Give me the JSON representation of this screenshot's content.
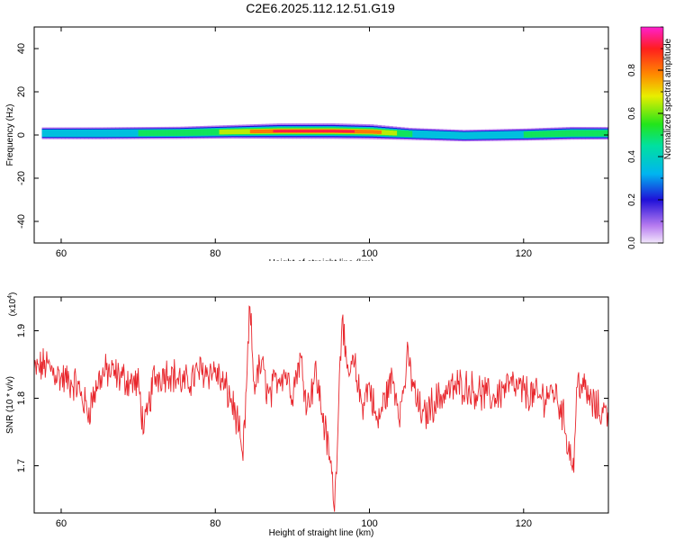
{
  "title": "C2E6.2025.112.12.51.G19",
  "chart_data": [
    {
      "type": "heatmap",
      "xlabel": "Height of straight line (km)",
      "ylabel": "Frequency (Hz)",
      "xlim": [
        56.5,
        131
      ],
      "ylim": [
        -50,
        50
      ],
      "xticks": [
        60,
        80,
        100,
        120
      ],
      "yticks": [
        -40,
        -20,
        0,
        20,
        40
      ],
      "xtick_labels": [
        "60",
        "80",
        "100",
        "120"
      ],
      "ytick_labels": [
        "-40",
        "-20",
        "0",
        "20",
        "40"
      ],
      "data_extent_x": [
        57.5,
        131
      ],
      "colorbar": {
        "label": "Normalized spectral amplitude",
        "range": [
          0,
          1
        ],
        "ticks": [
          0.0,
          0.2,
          0.4,
          0.6,
          0.8
        ],
        "tick_labels": [
          "0.0",
          "0.2",
          "0.4",
          "0.6",
          "0.8"
        ],
        "colormap": "rainbow (purple-blue-cyan-green-yellow-orange-red-magenta)"
      },
      "ridge": {
        "x": [
          57.5,
          65,
          75,
          82,
          88,
          95,
          100,
          105,
          112,
          120,
          126,
          131
        ],
        "frequency": [
          0.8,
          0.8,
          1.0,
          1.5,
          1.8,
          1.8,
          1.5,
          0.5,
          -0.3,
          0.2,
          0.8,
          0.8
        ],
        "amplitude": [
          0.45,
          0.48,
          0.52,
          0.7,
          0.95,
          0.97,
          0.88,
          0.5,
          0.42,
          0.5,
          0.6,
          0.55
        ]
      }
    },
    {
      "type": "line",
      "xlabel": "Height of straight line (km)",
      "ylabel": "SNR (10 * v/v)",
      "yscale_label": "(x10",
      "yscale_exponent": "4",
      "xlim": [
        56.5,
        131
      ],
      "ylim": [
        1.63,
        1.95
      ],
      "xticks": [
        60,
        80,
        100,
        120
      ],
      "yticks": [
        1.7,
        1.8,
        1.9
      ],
      "xtick_labels": [
        "60",
        "80",
        "100",
        "120"
      ],
      "ytick_labels": [
        "1.7",
        "1.8",
        "1.9"
      ],
      "series": [
        {
          "color": "#e8262c",
          "x": [
            56.5,
            58,
            60,
            62,
            63.5,
            65,
            66,
            68,
            70,
            70.8,
            72,
            74,
            76,
            78,
            80,
            81,
            82,
            83,
            83.5,
            84,
            84.5,
            85,
            86,
            87,
            88,
            89,
            90,
            91,
            92,
            93,
            94,
            95,
            95.5,
            96,
            96.5,
            97,
            98,
            99,
            100,
            101,
            102,
            103,
            104,
            105,
            106,
            107,
            108,
            109,
            110,
            112,
            114,
            116,
            118,
            120,
            122,
            124,
            125,
            126,
            126.5,
            127,
            128,
            129,
            130,
            131
          ],
          "y": [
            1.84,
            1.85,
            1.83,
            1.82,
            1.78,
            1.83,
            1.84,
            1.83,
            1.82,
            1.75,
            1.83,
            1.84,
            1.82,
            1.84,
            1.84,
            1.82,
            1.8,
            1.76,
            1.7,
            1.8,
            1.94,
            1.82,
            1.85,
            1.8,
            1.83,
            1.84,
            1.81,
            1.86,
            1.79,
            1.84,
            1.77,
            1.7,
            1.64,
            1.8,
            1.94,
            1.83,
            1.85,
            1.79,
            1.82,
            1.76,
            1.8,
            1.83,
            1.78,
            1.86,
            1.8,
            1.77,
            1.79,
            1.8,
            1.81,
            1.82,
            1.81,
            1.8,
            1.82,
            1.81,
            1.8,
            1.81,
            1.78,
            1.72,
            1.7,
            1.83,
            1.81,
            1.79,
            1.78,
            1.78
          ]
        }
      ]
    }
  ]
}
